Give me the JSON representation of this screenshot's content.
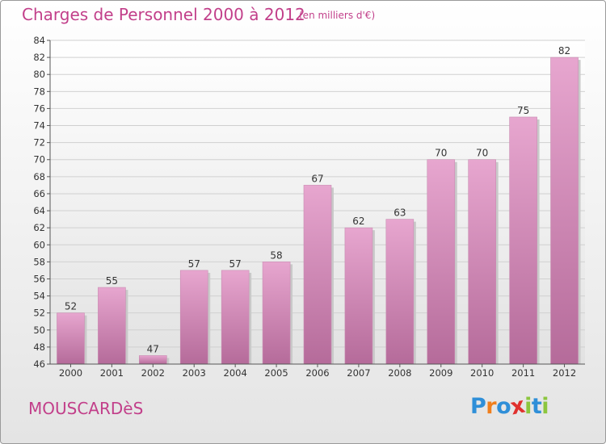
{
  "header": {
    "title": "Charges de Personnel 2000 à 2012",
    "subtitle": "(en milliers d'€)"
  },
  "footer": {
    "city": "MOUSCARDèS",
    "brand": "Proxiti"
  },
  "colors": {
    "title": "#c23f8a",
    "bar_top": "#e7a6cf",
    "bar_bottom": "#b56b9a",
    "brand_letters": [
      "#2f8fd8",
      "#f07f1d",
      "#2f8fd8",
      "#e0312e",
      "#8cc63e",
      "#2f8fd8",
      "#8cc63e"
    ]
  },
  "chart_data": {
    "type": "bar",
    "categories": [
      "2000",
      "2001",
      "2002",
      "2003",
      "2004",
      "2005",
      "2006",
      "2007",
      "2008",
      "2009",
      "2010",
      "2011",
      "2012"
    ],
    "values": [
      52,
      55,
      47,
      57,
      57,
      58,
      67,
      62,
      63,
      70,
      70,
      75,
      82
    ],
    "title": "Charges de Personnel 2000 à 2012",
    "xlabel": "",
    "ylabel": "",
    "ylim": [
      46,
      84
    ],
    "yticks": [
      46,
      48,
      50,
      52,
      54,
      56,
      58,
      60,
      62,
      64,
      66,
      68,
      70,
      72,
      74,
      76,
      78,
      80,
      82,
      84
    ],
    "grid": true,
    "data_labels": true
  }
}
